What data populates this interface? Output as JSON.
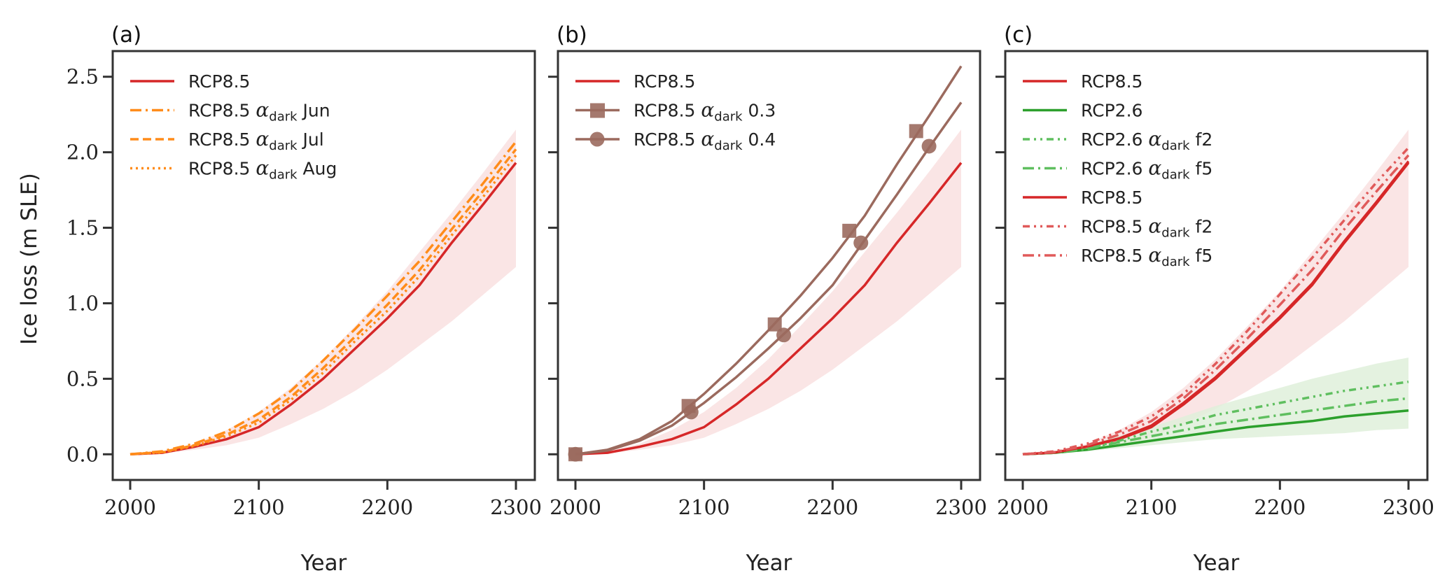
{
  "chart_data": {
    "type": "line",
    "ylabel": "Ice loss (m SLE)",
    "xlabel": "Year",
    "xlim": [
      2000,
      2300
    ],
    "ylim": [
      -0.17,
      2.67
    ],
    "xticks": [
      "2000",
      "2100",
      "2200",
      "2300"
    ],
    "yticks": [
      "0.0",
      "0.5",
      "1.0",
      "1.5",
      "2.0",
      "2.5"
    ],
    "x": [
      2000,
      2025,
      2050,
      2075,
      2100,
      2125,
      2150,
      2175,
      2200,
      2225,
      2250,
      2275,
      2300
    ],
    "colors": {
      "red": "#d62728",
      "orange": "#ff8c1a",
      "brown": "#9b6a5e",
      "green": "#2ca02c",
      "lightgreen": "#5fbf5f",
      "lightred": "#e05a5a",
      "redband": "#f9e0e0",
      "greenband": "#dff0da"
    },
    "panels": [
      {
        "label": "(a)",
        "bands": [
          {
            "color": "redband",
            "lower": [
              0,
              0.005,
              0.03,
              0.06,
              0.11,
              0.2,
              0.3,
              0.42,
              0.56,
              0.72,
              0.88,
              1.06,
              1.24
            ],
            "upper": [
              0,
              0.02,
              0.07,
              0.16,
              0.28,
              0.44,
              0.63,
              0.85,
              1.08,
              1.34,
              1.6,
              1.87,
              2.15
            ]
          }
        ],
        "series": [
          {
            "name": "RCP8.5",
            "legend": [
              "RCP8.5",
              "",
              "",
              ""
            ],
            "color": "red",
            "dash": "",
            "values": [
              0,
              0.01,
              0.05,
              0.1,
              0.18,
              0.33,
              0.5,
              0.7,
              0.9,
              1.12,
              1.4,
              1.66,
              1.93
            ]
          },
          {
            "name": "RCP8.5 αdark Jun",
            "legend": [
              "RCP8.5 ",
              "α",
              "dark",
              " Jun"
            ],
            "color": "orange",
            "dash": "16 6 3 6",
            "values": [
              0,
              0.02,
              0.07,
              0.15,
              0.27,
              0.42,
              0.62,
              0.83,
              1.05,
              1.28,
              1.54,
              1.8,
              2.07
            ]
          },
          {
            "name": "RCP8.5 αdark Jul",
            "legend": [
              "RCP8.5 ",
              "α",
              "dark",
              " Jul"
            ],
            "color": "orange",
            "dash": "12 6",
            "values": [
              0,
              0.015,
              0.06,
              0.13,
              0.23,
              0.38,
              0.57,
              0.78,
              0.99,
              1.22,
              1.49,
              1.75,
              2.02
            ]
          },
          {
            "name": "RCP8.5 αdark Aug",
            "legend": [
              "RCP8.5 ",
              "α",
              "dark",
              " Aug"
            ],
            "color": "orange",
            "dash": "3 5",
            "values": [
              0,
              0.012,
              0.055,
              0.12,
              0.21,
              0.36,
              0.54,
              0.75,
              0.95,
              1.18,
              1.45,
              1.71,
              1.98
            ]
          }
        ]
      },
      {
        "label": "(b)",
        "bands": [
          {
            "color": "redband",
            "lower": [
              0,
              0.005,
              0.03,
              0.06,
              0.11,
              0.2,
              0.3,
              0.42,
              0.56,
              0.72,
              0.88,
              1.06,
              1.24
            ],
            "upper": [
              0,
              0.02,
              0.07,
              0.16,
              0.28,
              0.44,
              0.63,
              0.85,
              1.08,
              1.34,
              1.6,
              1.87,
              2.15
            ]
          }
        ],
        "series": [
          {
            "name": "RCP8.5",
            "legend": [
              "RCP8.5",
              "",
              "",
              ""
            ],
            "color": "red",
            "dash": "",
            "values": [
              0,
              0.01,
              0.05,
              0.1,
              0.18,
              0.33,
              0.5,
              0.7,
              0.9,
              1.12,
              1.4,
              1.66,
              1.93
            ]
          },
          {
            "name": "RCP8.5 αdark 0.3",
            "legend": [
              "RCP8.5 ",
              "α",
              "dark",
              " 0.3"
            ],
            "color": "brown",
            "dash": "",
            "marker": "square",
            "markers": [
              [
                2000,
                0
              ],
              [
                2088,
                0.32
              ],
              [
                2155,
                0.86
              ],
              [
                2213,
                1.48
              ],
              [
                2265,
                2.14
              ]
            ],
            "values": [
              0,
              0.03,
              0.1,
              0.22,
              0.4,
              0.6,
              0.82,
              1.05,
              1.3,
              1.58,
              1.92,
              2.24,
              2.57
            ]
          },
          {
            "name": "RCP8.5 αdark 0.4",
            "legend": [
              "RCP8.5 ",
              "α",
              "dark",
              " 0.4"
            ],
            "color": "brown",
            "dash": "",
            "marker": "circle",
            "markers": [
              [
                2000,
                0
              ],
              [
                2090,
                0.28
              ],
              [
                2162,
                0.79
              ],
              [
                2222,
                1.4
              ],
              [
                2275,
                2.04
              ]
            ],
            "values": [
              0,
              0.025,
              0.09,
              0.19,
              0.34,
              0.51,
              0.7,
              0.9,
              1.12,
              1.42,
              1.72,
              2.03,
              2.33
            ]
          }
        ]
      },
      {
        "label": "(c)",
        "bands": [
          {
            "color": "redband",
            "lower": [
              0,
              0.005,
              0.03,
              0.06,
              0.11,
              0.2,
              0.3,
              0.42,
              0.56,
              0.72,
              0.88,
              1.06,
              1.24
            ],
            "upper": [
              0,
              0.02,
              0.07,
              0.16,
              0.28,
              0.44,
              0.63,
              0.85,
              1.08,
              1.34,
              1.6,
              1.87,
              2.15
            ]
          },
          {
            "color": "greenband",
            "lower": [
              0,
              0.005,
              0.02,
              0.04,
              0.06,
              0.08,
              0.1,
              0.11,
              0.12,
              0.13,
              0.14,
              0.16,
              0.17
            ],
            "upper": [
              0,
              0.02,
              0.06,
              0.12,
              0.18,
              0.25,
              0.32,
              0.38,
              0.44,
              0.5,
              0.55,
              0.6,
              0.64
            ]
          }
        ],
        "series": [
          {
            "name": "RCP8.5",
            "legend": [
              "RCP8.5",
              "",
              "",
              ""
            ],
            "color": "red",
            "dash": "",
            "values": [
              0,
              0.01,
              0.05,
              0.1,
              0.18,
              0.33,
              0.5,
              0.7,
              0.9,
              1.12,
              1.4,
              1.66,
              1.93
            ]
          },
          {
            "name": "RCP2.6",
            "legend": [
              "RCP2.6",
              "",
              "",
              ""
            ],
            "color": "green",
            "dash": "",
            "values": [
              0,
              0.01,
              0.03,
              0.06,
              0.09,
              0.12,
              0.15,
              0.18,
              0.2,
              0.22,
              0.25,
              0.27,
              0.29
            ]
          },
          {
            "name": "RCP2.6 αdark f2",
            "legend": [
              "RCP2.6 ",
              "α",
              "dark",
              " f2"
            ],
            "color": "lightgreen",
            "dash": "10 6 3 6 3 6",
            "values": [
              0,
              0.01,
              0.04,
              0.09,
              0.15,
              0.2,
              0.26,
              0.3,
              0.34,
              0.38,
              0.42,
              0.45,
              0.48
            ]
          },
          {
            "name": "RCP2.6 αdark f5",
            "legend": [
              "RCP2.6 ",
              "α",
              "dark",
              " f5"
            ],
            "color": "lightgreen",
            "dash": "16 6 3 6",
            "values": [
              0,
              0.01,
              0.035,
              0.08,
              0.12,
              0.16,
              0.2,
              0.23,
              0.26,
              0.29,
              0.32,
              0.35,
              0.37
            ]
          },
          {
            "name": "RCP8.5",
            "legend": [
              "RCP8.5",
              "",
              "",
              ""
            ],
            "color": "red",
            "dash": "",
            "values": [
              0,
              0.012,
              0.052,
              0.105,
              0.19,
              0.34,
              0.51,
              0.71,
              0.91,
              1.13,
              1.41,
              1.67,
              1.94
            ]
          },
          {
            "name": "RCP8.5 αdark f2",
            "legend": [
              "RCP8.5 ",
              "α",
              "dark",
              " f2"
            ],
            "color": "lightred",
            "dash": "10 6 3 6 3 6",
            "values": [
              0,
              0.02,
              0.07,
              0.15,
              0.25,
              0.4,
              0.6,
              0.82,
              1.06,
              1.3,
              1.55,
              1.8,
              2.03
            ]
          },
          {
            "name": "RCP8.5 αdark f5",
            "legend": [
              "RCP8.5 ",
              "α",
              "dark",
              " f5"
            ],
            "color": "lightred",
            "dash": "16 6 3 6",
            "values": [
              0,
              0.015,
              0.06,
              0.13,
              0.22,
              0.37,
              0.56,
              0.77,
              0.99,
              1.22,
              1.49,
              1.74,
              1.98
            ]
          }
        ]
      }
    ]
  }
}
